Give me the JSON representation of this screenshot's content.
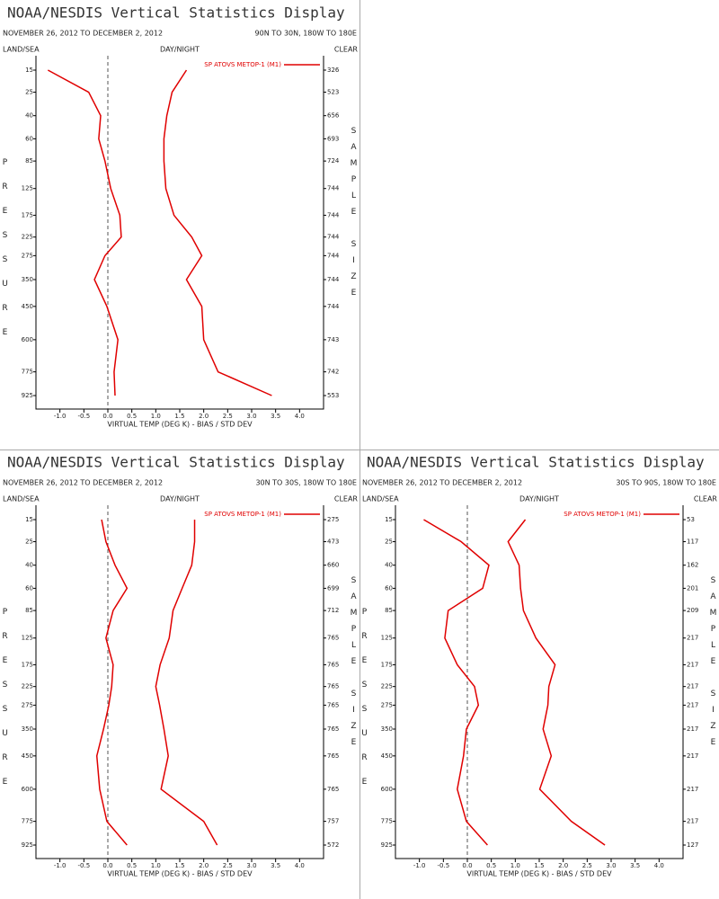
{
  "chart_data": [
    {
      "type": "line",
      "title": "NOAA/NESDIS Vertical Statistics Display",
      "subtitle": "NOVEMBER 26, 2012 TO DECEMBER 2, 2012",
      "region": "90N TO 30N, 180W TO 180E",
      "left_header": "LAND/SEA",
      "center_header": "DAY/NIGHT",
      "right_header": "CLEAR",
      "x_label": "VIRTUAL TEMP (DEG K) - BIAS / STD DEV",
      "y_label": "PRESSURE",
      "y2_label": "SAMPLE SIZE",
      "categories": [
        15,
        25,
        40,
        60,
        85,
        125,
        175,
        225,
        275,
        350,
        450,
        600,
        775,
        925
      ],
      "sample_sizes": [
        326,
        523,
        656,
        693,
        724,
        744,
        744,
        744,
        744,
        744,
        744,
        743,
        742,
        553
      ],
      "series": [
        {
          "name": "SP ATOVS METOP-1 (M1)",
          "color": "#e00000",
          "values": [
            1.64,
            1.34,
            1.23,
            1.17,
            1.17,
            1.21,
            1.38,
            1.75,
            1.96,
            1.64,
            1.96,
            2.0,
            2.3,
            3.42
          ]
        },
        {
          "color": "#e00000",
          "values": [
            -1.25,
            -0.4,
            -0.15,
            -0.19,
            -0.06,
            0.06,
            0.25,
            0.28,
            -0.06,
            -0.28,
            -0.02,
            0.21,
            0.13,
            0.15
          ]
        }
      ],
      "xlim": [
        -1.5,
        4.5
      ],
      "xticks": [
        {
          "value": -1,
          "label": "-1.0"
        },
        -0.5,
        {
          "value": 0,
          "label": "0.0"
        },
        0.5,
        {
          "value": 1,
          "label": "1.0"
        },
        1.5,
        {
          "value": 2,
          "label": "2.0"
        },
        2.5,
        {
          "value": 3,
          "label": "3.0"
        },
        3.5,
        {
          "value": 4,
          "label": "4.0"
        }
      ]
    },
    {
      "type": "line",
      "title": "NOAA/NESDIS Vertical Statistics Display",
      "subtitle": "NOVEMBER 26, 2012 TO DECEMBER 2, 2012",
      "region": "30N TO 30S, 180W TO 180E",
      "left_header": "LAND/SEA",
      "center_header": "DAY/NIGHT",
      "right_header": "CLEAR",
      "x_label": "VIRTUAL TEMP (DEG K) - BIAS / STD DEV",
      "y_label": "PRESSURE",
      "y2_label": "SAMPLE SIZE",
      "categories": [
        15,
        25,
        40,
        60,
        85,
        125,
        175,
        225,
        275,
        350,
        450,
        600,
        775,
        925
      ],
      "sample_sizes": [
        275,
        473,
        660,
        699,
        712,
        765,
        765,
        765,
        765,
        765,
        765,
        765,
        757,
        572
      ],
      "series": [
        {
          "name": "SP ATOVS METOP-1 (M1)",
          "color": "#e00000",
          "values": [
            1.81,
            1.81,
            1.75,
            1.55,
            1.36,
            1.28,
            1.09,
            1.0,
            1.08,
            1.17,
            1.26,
            1.11,
            2.0,
            2.28
          ]
        },
        {
          "color": "#e00000",
          "values": [
            -0.13,
            -0.04,
            0.15,
            0.4,
            0.11,
            -0.04,
            0.11,
            0.08,
            0.02,
            -0.09,
            -0.23,
            -0.17,
            -0.02,
            0.4
          ]
        }
      ],
      "xlim": [
        -1.5,
        4.5
      ],
      "xticks": [
        {
          "value": -1,
          "label": "-1.0"
        },
        -0.5,
        {
          "value": 0,
          "label": "0.0"
        },
        0.5,
        {
          "value": 1,
          "label": "1.0"
        },
        1.5,
        {
          "value": 2,
          "label": "2.0"
        },
        2.5,
        {
          "value": 3,
          "label": "3.0"
        },
        3.5,
        {
          "value": 4,
          "label": "4.0"
        }
      ]
    },
    {
      "type": "line",
      "title": "NOAA/NESDIS Vertical Statistics Display",
      "subtitle": "NOVEMBER 26, 2012 TO DECEMBER 2, 2012",
      "region": "30S TO 90S, 180W TO 180E",
      "left_header": "LAND/SEA",
      "center_header": "DAY/NIGHT",
      "right_header": "CLEAR",
      "x_label": "VIRTUAL TEMP (DEG K) - BIAS / STD DEV",
      "y_label": "PRESSURE",
      "y2_label": "SAMPLE SIZE",
      "categories": [
        15,
        25,
        40,
        60,
        85,
        125,
        175,
        225,
        275,
        350,
        450,
        600,
        775,
        925
      ],
      "sample_sizes": [
        53,
        117,
        162,
        201,
        209,
        217,
        217,
        217,
        217,
        217,
        217,
        217,
        217,
        127
      ],
      "series": [
        {
          "name": "SP ATOVS METOP-1 (M1)",
          "color": "#e00000",
          "values": [
            1.21,
            0.85,
            1.08,
            1.11,
            1.17,
            1.43,
            1.83,
            1.7,
            1.68,
            1.58,
            1.75,
            1.51,
            2.17,
            2.87
          ]
        },
        {
          "color": "#e00000",
          "values": [
            -0.91,
            -0.13,
            0.45,
            0.32,
            -0.4,
            -0.47,
            -0.21,
            0.15,
            0.23,
            -0.02,
            -0.08,
            -0.21,
            -0.02,
            0.42
          ]
        }
      ],
      "xlim": [
        -1.5,
        4.5
      ],
      "xticks": [
        {
          "value": -1,
          "label": "-1.0"
        },
        -0.5,
        {
          "value": 0,
          "label": "0.0"
        },
        0.5,
        {
          "value": 1,
          "label": "1.0"
        },
        1.5,
        {
          "value": 2,
          "label": "2.0"
        },
        2.5,
        {
          "value": 3,
          "label": "3.0"
        },
        3.5,
        {
          "value": 4,
          "label": "4.0"
        }
      ]
    }
  ]
}
